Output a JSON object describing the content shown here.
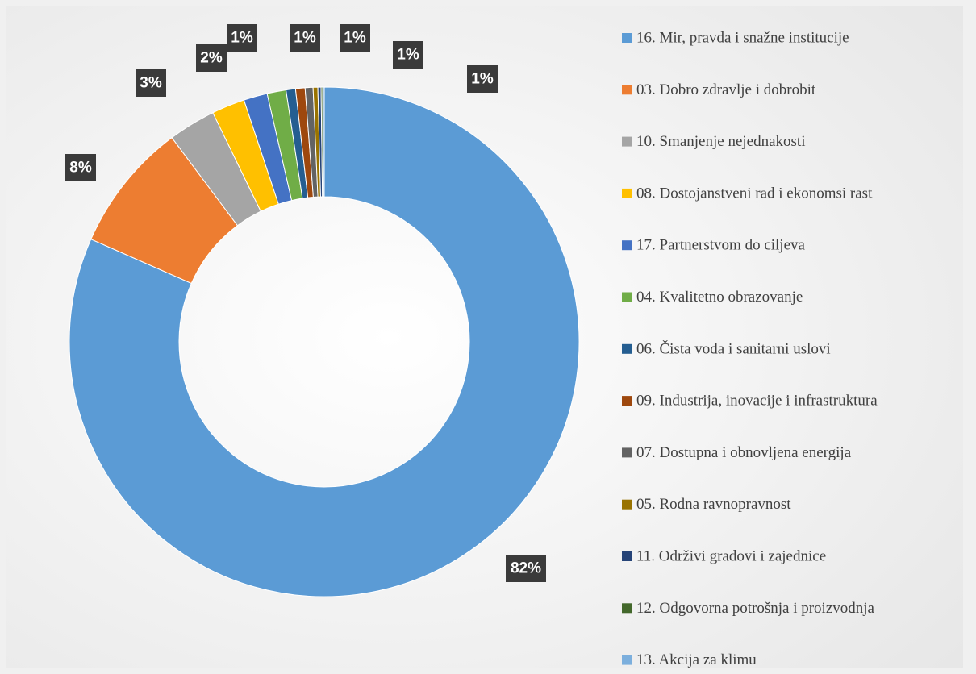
{
  "chart_data": {
    "type": "donut",
    "categories": [
      "16. Mir, pravda i snažne institucije",
      "03. Dobro zdravlje i dobrobit",
      "10. Smanjenje nejednakosti",
      "08. Dostojanstveni rad i ekonomsi rast",
      "17. Partnerstvom do ciljeva",
      "04. Kvalitetno obrazovanje",
      "06. Čista voda i sanitarni uslovi",
      "09. Industrija, inovacije i infrastruktura",
      "07. Dostupna i obnovljena energija",
      "05. Rodna ravnopravnost",
      "11. Održivi gradovi i zajednice",
      "12. Odgovorna potrošnja i proizvodnja",
      "13. Akcija za klimu"
    ],
    "values": [
      81.6,
      8.2,
      3.0,
      2.1,
      1.5,
      1.2,
      0.6,
      0.6,
      0.5,
      0.3,
      0.2,
      0.1,
      0.1
    ],
    "value_labels": [
      "82%",
      "8%",
      "3%",
      "2%",
      "1%",
      "1%",
      "1%",
      "1%",
      "1%",
      null,
      null,
      null,
      null
    ],
    "colors": [
      "#5b9bd5",
      "#ed7d31",
      "#a5a5a5",
      "#ffc000",
      "#4472c4",
      "#70ad47",
      "#255e91",
      "#9e480e",
      "#636363",
      "#997300",
      "#264478",
      "#43682b",
      "#7cafdd"
    ],
    "legend": "right"
  }
}
